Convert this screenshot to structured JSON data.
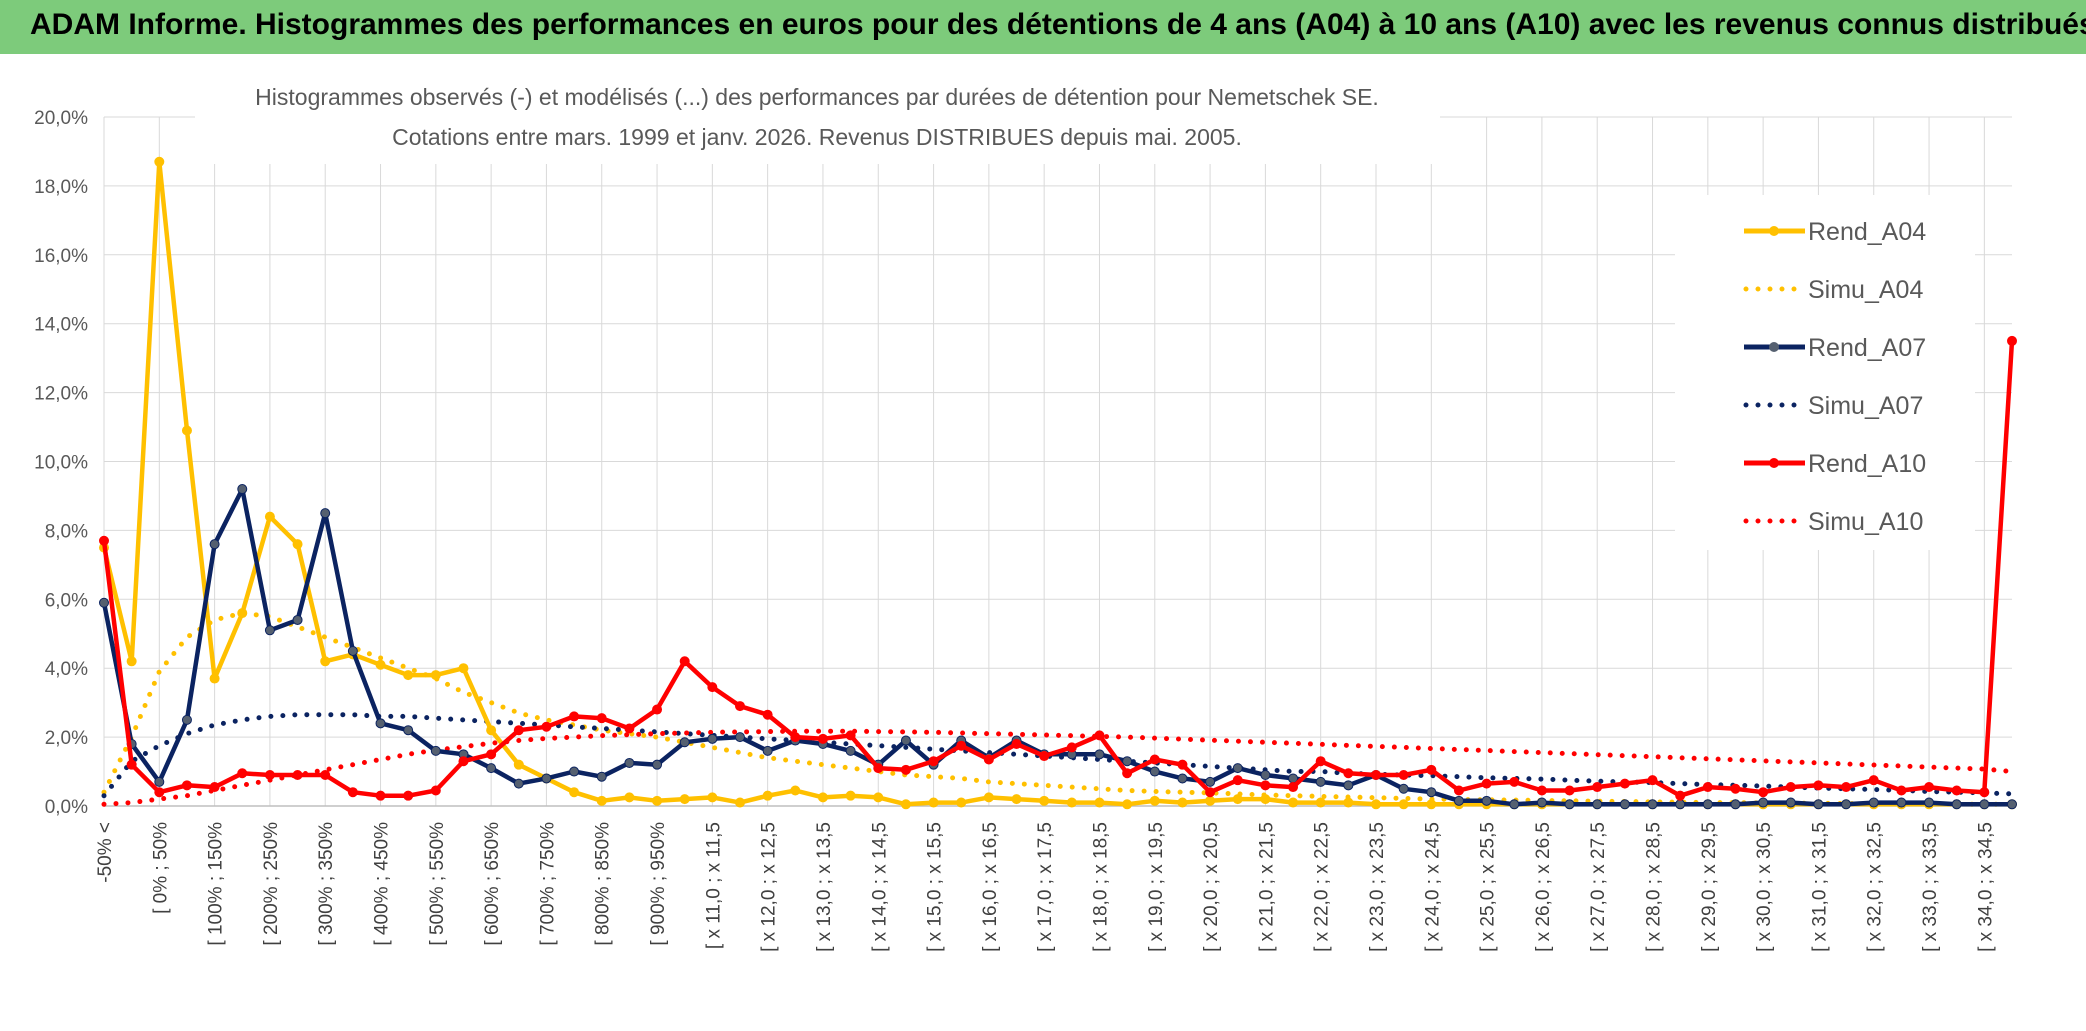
{
  "banner": {
    "title": "ADAM Informe. Histogrammes des performances en euros pour des détentions de 4 ans (A04) à 10 ans (A10) avec les revenus connus distribués"
  },
  "colors": {
    "banner": "#7dcb7b",
    "a04": "#ffc000",
    "a07": "#0b2361",
    "a10": "#ff0000",
    "grid": "#d9d9d9",
    "marker_a07": "#556070"
  },
  "chart_data": {
    "type": "line",
    "title_line1": "Histogrammes observés (-) et modélisés (...) des performances par durées de détention pour Nemetschek SE.",
    "title_line2": "Cotations entre mars. 1999 et janv. 2026. Revenus DISTRIBUES depuis mai. 2005.",
    "xlabel": "",
    "ylabel": "",
    "ylim": [
      0,
      20
    ],
    "yticks": [
      "0,0%",
      "2,0%",
      "4,0%",
      "6,0%",
      "8,0%",
      "10,0%",
      "12,0%",
      "14,0%",
      "16,0%",
      "18,0%",
      "20,0%"
    ],
    "n_points": 70,
    "x_tick_labels": [
      "-50% <",
      "[ 0% ; 50%",
      "[ 100% ; 150%",
      "[ 200% ; 250%",
      "[ 300% ; 350%",
      "[ 400% ; 450%",
      "[ 500% ; 550%",
      "[ 600% ; 650%",
      "[ 700% ; 750%",
      "[ 800% ; 850%",
      "[ 900% ; 950%",
      "[ x 11,0 ; x 11,5",
      "[ x 12,0 ; x 12,5",
      "[ x 13,0 ; x 13,5",
      "[ x 14,0 ; x 14,5",
      "[ x 15,0 ; x 15,5",
      "[ x 16,0 ; x 16,5",
      "[ x 17,0 ; x 17,5",
      "[ x 18,0 ; x 18,5",
      "[ x 19,0 ; x 19,5",
      "[ x 20,0 ; x 20,5",
      "[ x 21,0 ; x 21,5",
      "[ x 22,0 ; x 22,5",
      "[ x 23,0 ; x 23,5",
      "[ x 24,0 ; x 24,5",
      "[ x 25,0 ; x 25,5",
      "[ x 26,0 ; x 26,5",
      "[ x 27,0 ; x 27,5",
      "[ x 28,0 ; x 28,5",
      "[ x 29,0 ; x 29,5",
      "[ x 30,0 ; x 30,5",
      "[ x 31,0 ; x 31,5",
      "[ x 32,0 ; x 32,5",
      "[ x 33,0 ; x 33,5",
      "[ x 34,0 ; x 34,5"
    ],
    "legend_position": "right",
    "series": [
      {
        "name": "Rend_A04",
        "key": "a04",
        "style": "solid",
        "values": [
          7.5,
          4.2,
          18.7,
          10.9,
          3.7,
          5.6,
          8.4,
          7.6,
          4.2,
          4.4,
          4.1,
          3.8,
          3.8,
          4.0,
          2.2,
          1.2,
          0.8,
          0.4,
          0.15,
          0.25,
          0.15,
          0.2,
          0.25,
          0.1,
          0.3,
          0.45,
          0.25,
          0.3,
          0.25,
          0.05,
          0.1,
          0.1,
          0.25,
          0.2,
          0.15,
          0.1,
          0.1,
          0.05,
          0.15,
          0.1,
          0.15,
          0.2,
          0.2,
          0.1,
          0.1,
          0.1,
          0.05,
          0.05,
          0.05,
          0.05,
          0.05,
          0.05,
          0.05,
          0.05,
          0.05,
          0.05,
          0.05,
          0.05,
          0.05,
          0.05,
          0.05,
          0.05,
          0.05,
          0.05,
          0.05,
          0.05,
          0.05,
          0.05,
          0.05,
          0.05
        ]
      },
      {
        "name": "Simu_A04",
        "key": "a04",
        "style": "dotted",
        "values": [
          0.4,
          2.0,
          3.9,
          4.9,
          5.4,
          5.6,
          5.5,
          5.2,
          4.9,
          4.6,
          4.3,
          4.0,
          3.7,
          3.3,
          3.0,
          2.7,
          2.5,
          2.35,
          2.2,
          2.1,
          2.0,
          1.85,
          1.7,
          1.55,
          1.4,
          1.3,
          1.2,
          1.1,
          1.0,
          0.9,
          0.85,
          0.8,
          0.7,
          0.65,
          0.6,
          0.55,
          0.5,
          0.45,
          0.42,
          0.4,
          0.38,
          0.35,
          0.32,
          0.3,
          0.28,
          0.26,
          0.24,
          0.22,
          0.2,
          0.19,
          0.18,
          0.17,
          0.16,
          0.15,
          0.14,
          0.13,
          0.12,
          0.11,
          0.1,
          0.1,
          0.09,
          0.08,
          0.08,
          0.07,
          0.07,
          0.06,
          0.06,
          0.05,
          0.05,
          0.05
        ]
      },
      {
        "name": "Rend_A07",
        "key": "a07",
        "style": "solid",
        "values": [
          5.9,
          1.8,
          0.7,
          2.5,
          7.6,
          9.2,
          5.1,
          5.4,
          8.5,
          4.5,
          2.4,
          2.2,
          1.6,
          1.5,
          1.1,
          0.65,
          0.8,
          1.0,
          0.85,
          1.25,
          1.2,
          1.85,
          1.95,
          2.0,
          1.6,
          1.9,
          1.8,
          1.6,
          1.2,
          1.9,
          1.2,
          1.9,
          1.4,
          1.9,
          1.5,
          1.5,
          1.5,
          1.3,
          1.0,
          0.8,
          0.7,
          1.1,
          0.9,
          0.8,
          0.7,
          0.6,
          0.9,
          0.5,
          0.4,
          0.15,
          0.15,
          0.05,
          0.1,
          0.05,
          0.05,
          0.05,
          0.05,
          0.05,
          0.05,
          0.05,
          0.1,
          0.1,
          0.05,
          0.05,
          0.1,
          0.1,
          0.1,
          0.05,
          0.05,
          0.05
        ]
      },
      {
        "name": "Simu_A07",
        "key": "a07",
        "style": "dotted",
        "values": [
          0.3,
          1.3,
          1.75,
          2.1,
          2.35,
          2.5,
          2.6,
          2.65,
          2.65,
          2.65,
          2.6,
          2.6,
          2.55,
          2.5,
          2.45,
          2.4,
          2.35,
          2.3,
          2.25,
          2.2,
          2.15,
          2.1,
          2.05,
          2.0,
          1.95,
          1.9,
          1.85,
          1.8,
          1.75,
          1.7,
          1.65,
          1.6,
          1.55,
          1.5,
          1.45,
          1.4,
          1.35,
          1.3,
          1.25,
          1.2,
          1.15,
          1.1,
          1.05,
          1.0,
          1.0,
          0.95,
          0.92,
          0.9,
          0.88,
          0.85,
          0.82,
          0.8,
          0.78,
          0.75,
          0.72,
          0.7,
          0.68,
          0.65,
          0.62,
          0.6,
          0.58,
          0.55,
          0.52,
          0.5,
          0.48,
          0.45,
          0.42,
          0.4,
          0.38,
          0.35
        ]
      },
      {
        "name": "Rend_A10",
        "key": "a10",
        "style": "solid",
        "values": [
          7.7,
          1.2,
          0.4,
          0.6,
          0.55,
          0.95,
          0.9,
          0.9,
          0.9,
          0.4,
          0.3,
          0.3,
          0.45,
          1.3,
          1.5,
          2.2,
          2.3,
          2.6,
          2.55,
          2.25,
          2.8,
          4.2,
          3.45,
          2.9,
          2.65,
          2.0,
          1.95,
          2.05,
          1.1,
          1.05,
          1.3,
          1.75,
          1.35,
          1.8,
          1.45,
          1.7,
          2.05,
          0.95,
          1.35,
          1.2,
          0.4,
          0.75,
          0.6,
          0.55,
          1.3,
          0.95,
          0.9,
          0.9,
          1.05,
          0.45,
          0.65,
          0.7,
          0.45,
          0.45,
          0.55,
          0.65,
          0.75,
          0.3,
          0.55,
          0.5,
          0.4,
          0.55,
          0.6,
          0.55,
          0.75,
          0.45,
          0.55,
          0.45,
          0.4,
          13.5
        ]
      },
      {
        "name": "Simu_A10",
        "key": "a10",
        "style": "dotted",
        "values": [
          0.05,
          0.1,
          0.2,
          0.3,
          0.45,
          0.6,
          0.75,
          0.9,
          1.05,
          1.2,
          1.35,
          1.5,
          1.62,
          1.72,
          1.82,
          1.9,
          1.96,
          2.0,
          2.04,
          2.07,
          2.1,
          2.12,
          2.14,
          2.15,
          2.16,
          2.17,
          2.17,
          2.17,
          2.16,
          2.15,
          2.14,
          2.12,
          2.1,
          2.08,
          2.06,
          2.04,
          2.02,
          2.0,
          1.97,
          1.94,
          1.91,
          1.88,
          1.85,
          1.82,
          1.79,
          1.76,
          1.73,
          1.7,
          1.67,
          1.64,
          1.61,
          1.58,
          1.55,
          1.52,
          1.49,
          1.46,
          1.43,
          1.4,
          1.37,
          1.34,
          1.31,
          1.28,
          1.25,
          1.22,
          1.19,
          1.16,
          1.13,
          1.1,
          1.07,
          1.0
        ]
      }
    ]
  }
}
